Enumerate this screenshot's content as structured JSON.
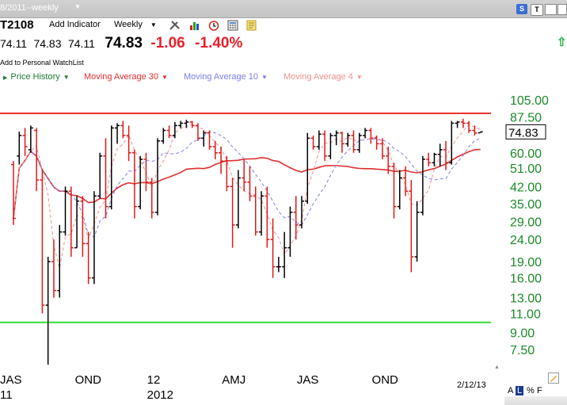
{
  "header": {
    "date_range": "8/2011--weekly",
    "symbol": "T2108",
    "add_indicator_label": "Add Indicator",
    "frequency": "Weekly",
    "corner_buttons": [
      "S",
      "T"
    ]
  },
  "quote": {
    "open": "74.11",
    "high": "74.83",
    "low": "74.11",
    "last": "74.83",
    "change": "-1.06",
    "change_pct": "-1.40%",
    "watchlist_link": "Add to Personal WatchList"
  },
  "legend": [
    {
      "label": "Price History",
      "color": "#1f7a32"
    },
    {
      "label": "Moving Average 30",
      "color": "#e03030"
    },
    {
      "label": "Moving Average 10",
      "color": "#7b80e8"
    },
    {
      "label": "Moving Average 4",
      "color": "#f0908a"
    }
  ],
  "footer": {
    "as_of_date": "2/12/13",
    "scale_buttons": [
      "A",
      "L",
      "%",
      "F"
    ],
    "selected_scale": "L"
  },
  "colors": {
    "up_bar": "#000000",
    "down_bar": "#e01818",
    "axis_labels": "#1c8a28",
    "resistance_line": "#ee3030",
    "support_line": "#33dd33",
    "negative": "#e8202a"
  },
  "chart_data": {
    "type": "ohlc",
    "scale": "log",
    "ylim": [
      6.3,
      122
    ],
    "y_ticks": [
      105,
      87.5,
      75,
      60,
      51,
      42,
      35,
      29,
      24,
      19,
      16,
      13,
      11,
      9,
      7.5
    ],
    "y_tick_labels": [
      "105.00",
      "87.50",
      "75.00",
      "60.00",
      "51.00",
      "42.00",
      "35.00",
      "29.00",
      "24.00",
      "19.00",
      "16.00",
      "13.00",
      "11.00",
      "9.00",
      "7.50"
    ],
    "x_labels": [
      {
        "text": "JAS",
        "row": 1,
        "week": 0
      },
      {
        "text": "11",
        "row": 2,
        "week": 0
      },
      {
        "text": "OND",
        "row": 1,
        "week": 13
      },
      {
        "text": "12",
        "row": 1,
        "week": 25.5
      },
      {
        "text": "2012",
        "row": 2,
        "week": 25.5
      },
      {
        "text": "AMJ",
        "row": 1,
        "week": 38.5
      },
      {
        "text": "JAS",
        "row": 1,
        "week": 51.5
      },
      {
        "text": "OND",
        "row": 1,
        "week": 64.5
      },
      {
        "text": "",
        "row": 1,
        "week": 78
      }
    ],
    "last_price_label": "74.83",
    "horizontal_lines": [
      {
        "name": "resistance",
        "value": 91
      },
      {
        "name": "support",
        "value": 10
      }
    ],
    "weeks": 82,
    "ohlc": [
      [
        53,
        55,
        28,
        30
      ],
      [
        58,
        75,
        53,
        72
      ],
      [
        72,
        78,
        58,
        64
      ],
      [
        62,
        80,
        60,
        78
      ],
      [
        76,
        78,
        40,
        45
      ],
      [
        45,
        50,
        11,
        12
      ],
      [
        12,
        20,
        6.4,
        19
      ],
      [
        19,
        24,
        13,
        14
      ],
      [
        14,
        28,
        13,
        26
      ],
      [
        26,
        42,
        25,
        40
      ],
      [
        40,
        42,
        20,
        22
      ],
      [
        22,
        38,
        22,
        36
      ],
      [
        36,
        38,
        20,
        23
      ],
      [
        23,
        26,
        15,
        16
      ],
      [
        16,
        40,
        15,
        38
      ],
      [
        38,
        60,
        37,
        58
      ],
      [
        58,
        70,
        30,
        34
      ],
      [
        34,
        80,
        33,
        78
      ],
      [
        78,
        82,
        66,
        80
      ],
      [
        80,
        84,
        70,
        72
      ],
      [
        72,
        80,
        55,
        60
      ],
      [
        60,
        62,
        30,
        34
      ],
      [
        34,
        58,
        33,
        56
      ],
      [
        56,
        60,
        40,
        44
      ],
      [
        44,
        46,
        30,
        32
      ],
      [
        32,
        70,
        31,
        68
      ],
      [
        68,
        78,
        66,
        76
      ],
      [
        76,
        80,
        70,
        72
      ],
      [
        72,
        83,
        70,
        80
      ],
      [
        80,
        84,
        78,
        82
      ],
      [
        82,
        85,
        78,
        83
      ],
      [
        83,
        84,
        78,
        80
      ],
      [
        80,
        82,
        68,
        70
      ],
      [
        70,
        76,
        64,
        74
      ],
      [
        74,
        76,
        62,
        64
      ],
      [
        64,
        68,
        56,
        60
      ],
      [
        60,
        64,
        48,
        55
      ],
      [
        55,
        58,
        40,
        42
      ],
      [
        42,
        46,
        22,
        28
      ],
      [
        28,
        50,
        27,
        46
      ],
      [
        46,
        56,
        40,
        44
      ],
      [
        44,
        52,
        36,
        38
      ],
      [
        38,
        42,
        25,
        26
      ],
      [
        26,
        40,
        25,
        38
      ],
      [
        38,
        42,
        22,
        24
      ],
      [
        24,
        30,
        16,
        18
      ],
      [
        18,
        20,
        17,
        18
      ],
      [
        18,
        26,
        16,
        22
      ],
      [
        22,
        34,
        20,
        32
      ],
      [
        32,
        38,
        24,
        28
      ],
      [
        28,
        38,
        27,
        36
      ],
      [
        36,
        74,
        35,
        70
      ],
      [
        70,
        72,
        62,
        64
      ],
      [
        64,
        76,
        62,
        73
      ],
      [
        73,
        76,
        55,
        58
      ],
      [
        58,
        74,
        56,
        72
      ],
      [
        72,
        76,
        65,
        74
      ],
      [
        74,
        75,
        60,
        66
      ],
      [
        66,
        74,
        64,
        72
      ],
      [
        72,
        76,
        60,
        62
      ],
      [
        62,
        74,
        60,
        72
      ],
      [
        72,
        78,
        70,
        76
      ],
      [
        76,
        78,
        66,
        70
      ],
      [
        70,
        72,
        62,
        66
      ],
      [
        66,
        70,
        56,
        58
      ],
      [
        58,
        64,
        48,
        52
      ],
      [
        52,
        54,
        30,
        34
      ],
      [
        34,
        50,
        33,
        46
      ],
      [
        46,
        52,
        38,
        40
      ],
      [
        40,
        45,
        17,
        20
      ],
      [
        20,
        36,
        19,
        32
      ],
      [
        32,
        58,
        31,
        56
      ],
      [
        56,
        60,
        52,
        54
      ],
      [
        54,
        60,
        52,
        59
      ],
      [
        59,
        66,
        52,
        62
      ],
      [
        62,
        68,
        50,
        54
      ],
      [
        54,
        84,
        53,
        82
      ],
      [
        82,
        84,
        78,
        83
      ],
      [
        83,
        86,
        78,
        82
      ],
      [
        82,
        84,
        74,
        76
      ],
      [
        76,
        80,
        72,
        74
      ],
      [
        74.11,
        74.83,
        74.11,
        74.83
      ]
    ]
  }
}
